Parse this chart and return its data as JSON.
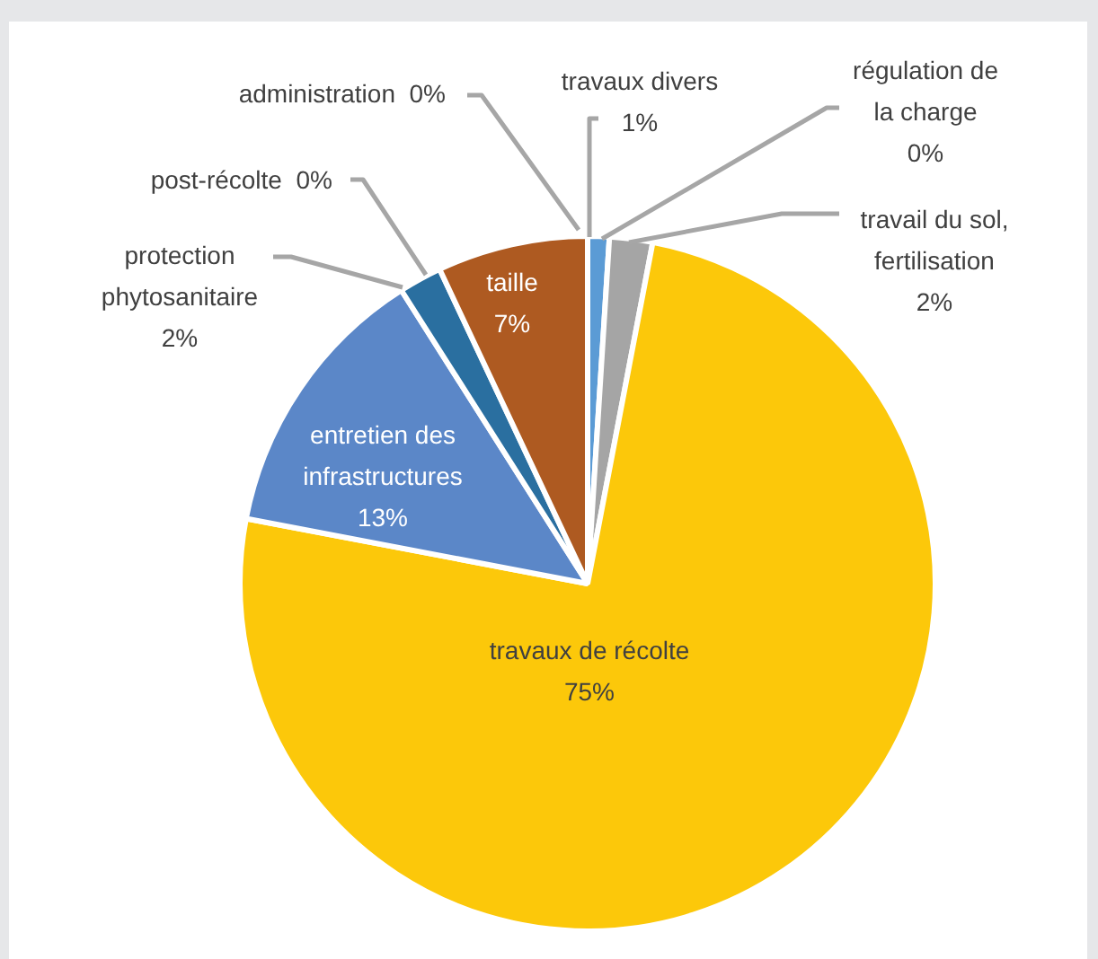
{
  "chart_data": {
    "type": "pie",
    "categories": [
      "travaux divers",
      "régulation de la charge",
      "travail du sol, fertilisation",
      "travaux de récolte",
      "entretien des infrastructures",
      "protection phytosanitaire",
      "post-récolte",
      "taille",
      "administration"
    ],
    "values": [
      1,
      0,
      2,
      75,
      13,
      2,
      0,
      7,
      0
    ],
    "value_labels": [
      "1%",
      "0%",
      "2%",
      "75%",
      "13%",
      "2%",
      "0%",
      "7%",
      "0%"
    ],
    "colors": [
      "#5b9bd5",
      "#7f7f7f",
      "#a5a5a5",
      "#fcc80a",
      "#5b87c8",
      "#2a6fa0",
      "#264478",
      "#ae5a21",
      "#4472c4"
    ],
    "legend": false
  }
}
